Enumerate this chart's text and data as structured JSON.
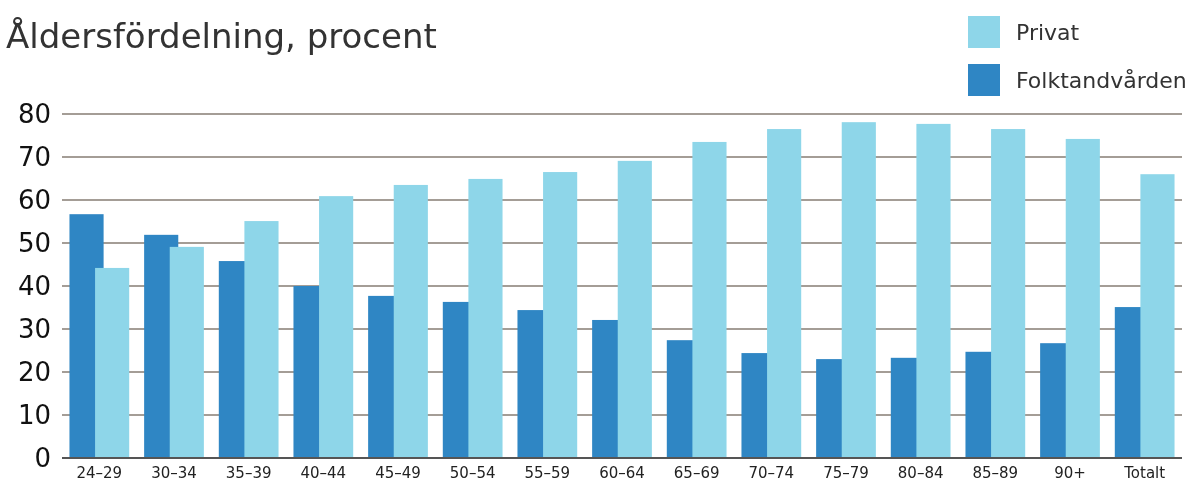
{
  "chart_data": {
    "type": "bar",
    "title": "Åldersfördelning, procent",
    "categories": [
      "24–29",
      "30–34",
      "35–39",
      "40–44",
      "45–49",
      "50–54",
      "55–59",
      "60–64",
      "65–69",
      "70–74",
      "75–79",
      "80–84",
      "85–89",
      "90+",
      "Totalt"
    ],
    "series": [
      {
        "name": "Folktandvården",
        "color": "#2f86c4",
        "values": [
          56.7,
          51.9,
          45.8,
          40,
          37.7,
          36.3,
          34.4,
          32.1,
          27.4,
          24.4,
          23,
          23.3,
          24.7,
          26.7,
          35.1
        ]
      },
      {
        "name": "Privat",
        "color": "#8ed6e9",
        "values": [
          44.2,
          49.1,
          55.1,
          60.9,
          63.5,
          64.9,
          66.5,
          69.1,
          73.5,
          76.5,
          78.1,
          77.7,
          76.5,
          74.2,
          66
        ]
      }
    ],
    "ylim": [
      0,
      80
    ],
    "yticks": [
      0,
      10,
      20,
      30,
      40,
      50,
      60,
      70,
      80
    ],
    "grid": "y",
    "legend": "top right"
  }
}
